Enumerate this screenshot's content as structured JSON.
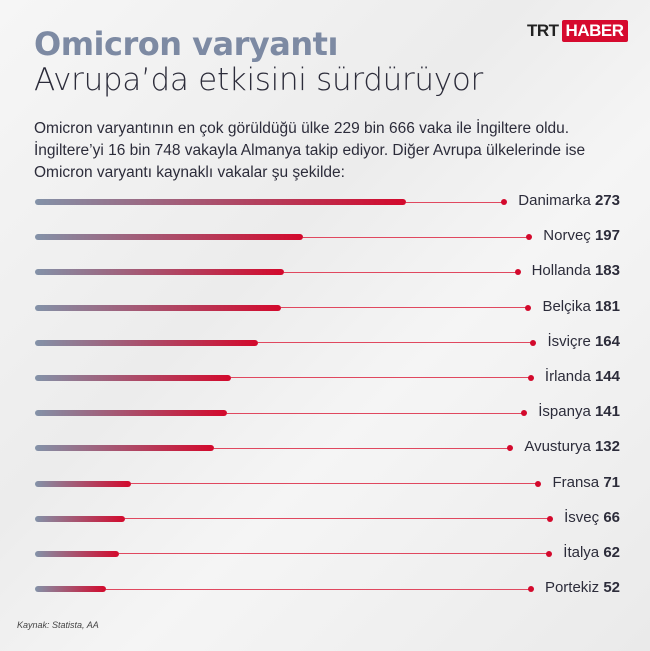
{
  "logo": {
    "part1": "TRT",
    "part2": "HABER"
  },
  "title": "Omicron varyantı",
  "subtitle": "Avrupa’da etkisini sürdürüyor",
  "intro": "Omicron varyantının en çok görüldüğü ülke 229 bin 666 vaka ile İngiltere oldu. İngiltere’yi 16 bin 748 vakayla Almanya takip ediyor. Diğer Avrupa ülkelerinde ise Omicron varyantı kaynaklı vakalar şu şekilde:",
  "source": "Kaynak: Statista, AA",
  "colors": {
    "accent": "#d3092c",
    "start": "#8392a8",
    "title": "#7d8aa3"
  },
  "chart_data": {
    "type": "bar",
    "orientation": "horizontal",
    "categories": [
      "Danimarka",
      "Norveç",
      "Hollanda",
      "Belçika",
      "İsviçre",
      "İrlanda",
      "İspanya",
      "Avusturya",
      "Fransa",
      "İsveç",
      "İtalya",
      "Portekiz"
    ],
    "values": [
      273,
      197,
      183,
      181,
      164,
      144,
      141,
      132,
      71,
      66,
      62,
      52
    ],
    "title": "Omicron varyantı Avrupa’da etkisini sürdürüyor",
    "xlim": [
      0,
      273
    ]
  }
}
